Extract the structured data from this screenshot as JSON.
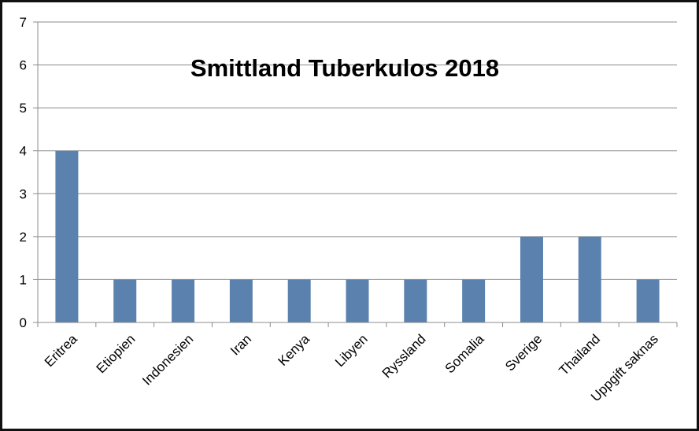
{
  "chart_data": {
    "type": "bar",
    "title": "Smittland Tuberkulos 2018",
    "categories": [
      "Eritrea",
      "Etiopien",
      "Indonesien",
      "Iran",
      "Kenya",
      "Libyen",
      "Ryssland",
      "Somalia",
      "Sverige",
      "Thailand",
      "Uppgift saknas"
    ],
    "values": [
      4,
      1,
      1,
      1,
      1,
      1,
      1,
      1,
      2,
      2,
      1
    ],
    "xlabel": "",
    "ylabel": "",
    "ylim": [
      0,
      7
    ],
    "yticks": [
      0,
      1,
      2,
      3,
      4,
      5,
      6,
      7
    ],
    "grid": true,
    "legend": "none",
    "bar_color": "#5b82ae"
  }
}
